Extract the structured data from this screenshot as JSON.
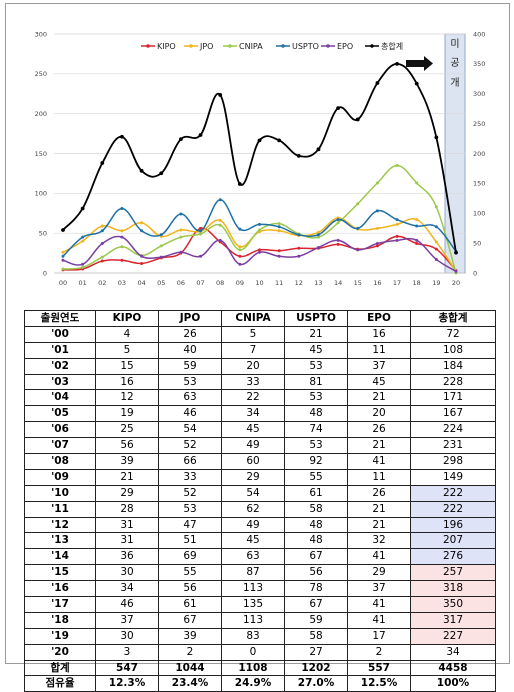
{
  "chart_data": {
    "type": "line",
    "categories": [
      "00",
      "01",
      "02",
      "03",
      "04",
      "05",
      "06",
      "07",
      "08",
      "09",
      "10",
      "11",
      "12",
      "13",
      "14",
      "15",
      "16",
      "17",
      "18",
      "19",
      "20"
    ],
    "series": [
      {
        "name": "KIPO",
        "axis": "left",
        "color": "#d9262e",
        "values": [
          4,
          5,
          15,
          16,
          12,
          19,
          25,
          56,
          39,
          21,
          29,
          28,
          31,
          31,
          36,
          30,
          34,
          46,
          37,
          30,
          3
        ]
      },
      {
        "name": "JPO",
        "axis": "left",
        "color": "#f0b41c",
        "values": [
          26,
          40,
          59,
          53,
          63,
          46,
          54,
          52,
          66,
          33,
          52,
          53,
          47,
          51,
          69,
          55,
          56,
          61,
          67,
          39,
          2
        ]
      },
      {
        "name": "CNIPA",
        "axis": "left",
        "color": "#9cc84b",
        "values": [
          5,
          7,
          20,
          33,
          22,
          34,
          45,
          49,
          60,
          29,
          54,
          62,
          49,
          45,
          63,
          87,
          113,
          135,
          113,
          83,
          0
        ]
      },
      {
        "name": "USPTO",
        "axis": "left",
        "color": "#1f70a8",
        "values": [
          21,
          45,
          53,
          81,
          53,
          48,
          74,
          53,
          92,
          55,
          61,
          58,
          48,
          48,
          67,
          56,
          78,
          67,
          59,
          58,
          27
        ]
      },
      {
        "name": "EPO",
        "axis": "left",
        "color": "#7a3fa0",
        "values": [
          16,
          11,
          37,
          45,
          21,
          20,
          26,
          21,
          41,
          11,
          26,
          21,
          21,
          32,
          41,
          29,
          37,
          41,
          41,
          17,
          2
        ]
      },
      {
        "name": "총합계",
        "axis": "right",
        "color": "#000000",
        "values": [
          72,
          108,
          184,
          228,
          171,
          167,
          224,
          231,
          298,
          149,
          222,
          222,
          196,
          207,
          276,
          257,
          318,
          350,
          317,
          227,
          34
        ]
      }
    ],
    "y_left": {
      "min": 0,
      "max": 300,
      "ticks": [
        "0",
        "50",
        "100",
        "150",
        "200",
        "250",
        "300"
      ]
    },
    "y_right": {
      "min": 0,
      "max": 400,
      "ticks": [
        "0",
        "50",
        "100",
        "150",
        "200",
        "250",
        "300",
        "350",
        "400"
      ]
    },
    "annotation": "미공개",
    "grid": true,
    "legend": "top"
  },
  "table": {
    "headers": [
      "출원연도",
      "KIPO",
      "JPO",
      "CNIPA",
      "USPTO",
      "EPO",
      "총합계"
    ],
    "rows": [
      [
        "'00",
        "4",
        "26",
        "5",
        "21",
        "16",
        "72"
      ],
      [
        "'01",
        "5",
        "40",
        "7",
        "45",
        "11",
        "108"
      ],
      [
        "'02",
        "15",
        "59",
        "20",
        "53",
        "37",
        "184"
      ],
      [
        "'03",
        "16",
        "53",
        "33",
        "81",
        "45",
        "228"
      ],
      [
        "'04",
        "12",
        "63",
        "22",
        "53",
        "21",
        "171"
      ],
      [
        "'05",
        "19",
        "46",
        "34",
        "48",
        "20",
        "167"
      ],
      [
        "'06",
        "25",
        "54",
        "45",
        "74",
        "26",
        "224"
      ],
      [
        "'07",
        "56",
        "52",
        "49",
        "53",
        "21",
        "231"
      ],
      [
        "'08",
        "39",
        "66",
        "60",
        "92",
        "41",
        "298"
      ],
      [
        "'09",
        "21",
        "33",
        "29",
        "55",
        "11",
        "149"
      ],
      [
        "'10",
        "29",
        "52",
        "54",
        "61",
        "26",
        "222"
      ],
      [
        "'11",
        "28",
        "53",
        "62",
        "58",
        "21",
        "222"
      ],
      [
        "'12",
        "31",
        "47",
        "49",
        "48",
        "21",
        "196"
      ],
      [
        "'13",
        "31",
        "51",
        "45",
        "48",
        "32",
        "207"
      ],
      [
        "'14",
        "36",
        "69",
        "63",
        "67",
        "41",
        "276"
      ],
      [
        "'15",
        "30",
        "55",
        "87",
        "56",
        "29",
        "257"
      ],
      [
        "'16",
        "34",
        "56",
        "113",
        "78",
        "37",
        "318"
      ],
      [
        "'17",
        "46",
        "61",
        "135",
        "67",
        "41",
        "350"
      ],
      [
        "'18",
        "37",
        "67",
        "113",
        "59",
        "41",
        "317"
      ],
      [
        "'19",
        "30",
        "39",
        "83",
        "58",
        "17",
        "227"
      ],
      [
        "'20",
        "3",
        "2",
        "0",
        "27",
        "2",
        "34"
      ]
    ],
    "sum_row": [
      "합계",
      "547",
      "1044",
      "1108",
      "1202",
      "557",
      "4458"
    ],
    "share_row": [
      "점유율",
      "12.3%",
      "23.4%",
      "24.9%",
      "27.0%",
      "12.5%",
      "100%"
    ],
    "highlight_blue_color": "#dfe3f7",
    "highlight_pink_color": "#fbe3e4"
  }
}
